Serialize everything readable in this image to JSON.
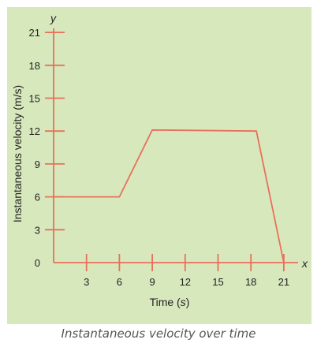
{
  "chart_data": {
    "type": "line",
    "colors": {
      "axis": "#e8705a",
      "series": "#e8705a",
      "background": "#d8e8bd"
    },
    "axis_letters": {
      "x": "x",
      "y": "y"
    },
    "xlabel": {
      "text": "Time (",
      "unit": "s",
      "close": ")"
    },
    "ylabel": "Instantaneous velocity (m/s)",
    "x_ticks": [
      "3",
      "6",
      "9",
      "12",
      "15",
      "18",
      "21"
    ],
    "y_ticks": [
      "0",
      "3",
      "6",
      "9",
      "12",
      "15",
      "18",
      "21"
    ],
    "xlim": [
      0,
      22
    ],
    "ylim": [
      0,
      21
    ],
    "series": [
      {
        "x": [
          0,
          6,
          9,
          18.5,
          21
        ],
        "y": [
          6,
          6,
          12.1,
          12,
          0
        ]
      }
    ],
    "grid": false,
    "legend": "none"
  },
  "caption": "Instantaneous velocity over time"
}
